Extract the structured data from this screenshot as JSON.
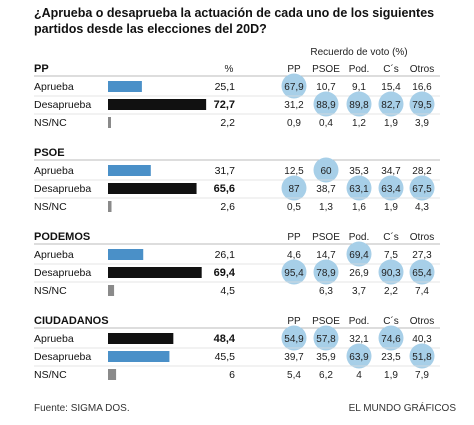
{
  "title_lines": [
    "¿Aprueba o desaprueba la actuación de cada uno de los siguientes",
    "partidos desde las elecciones del 20D?"
  ],
  "recuerdo_header": "Recuerdo de voto (%)",
  "source": "Fuente: SIGMA DOS.",
  "credit": "EL MUNDO GRÁFICOS",
  "colors": {
    "bar_black": "#111111",
    "bar_blue": "#4a90c8",
    "bar_grey": "#8a8a8a",
    "bubble": "#a7cfe8",
    "rule": "#bbbbbb"
  },
  "chart_data": {
    "type": "table",
    "columns": [
      "PP",
      "PSOE",
      "Pod.",
      "C´s",
      "Otros"
    ],
    "sections": [
      {
        "party": "PP",
        "header_cols": [
          "%",
          "PP",
          "PSOE",
          "Pod.",
          "C´s",
          "Otros"
        ],
        "rows": [
          {
            "label": "Aprueba",
            "total": "25,1",
            "value": 25.1,
            "bar": "blue",
            "bold": false,
            "cells": [
              "67,9",
              "10,7",
              "9,1",
              "15,4",
              "16,6"
            ],
            "highlight": [
              true,
              false,
              false,
              false,
              false
            ]
          },
          {
            "label": "Desaprueba",
            "total": "72,7",
            "value": 72.7,
            "bar": "black",
            "bold": true,
            "cells": [
              "31,2",
              "88,9",
              "89,8",
              "82,7",
              "79,5"
            ],
            "highlight": [
              false,
              true,
              true,
              true,
              true
            ]
          },
          {
            "label": "NS/NC",
            "total": "2,2",
            "value": 2.2,
            "bar": "grey",
            "bold": false,
            "cells": [
              "0,9",
              "0,4",
              "1,2",
              "1,9",
              "3,9"
            ],
            "highlight": [
              false,
              false,
              false,
              false,
              false
            ]
          }
        ]
      },
      {
        "party": "PSOE",
        "header_cols": [],
        "rows": [
          {
            "label": "Aprueba",
            "total": "31,7",
            "value": 31.7,
            "bar": "blue",
            "bold": false,
            "cells": [
              "12,5",
              "60",
              "35,3",
              "34,7",
              "28,2"
            ],
            "highlight": [
              false,
              true,
              false,
              false,
              false
            ]
          },
          {
            "label": "Desaprueba",
            "total": "65,6",
            "value": 65.6,
            "bar": "black",
            "bold": true,
            "cells": [
              "87",
              "38,7",
              "63,1",
              "63,4",
              "67,5"
            ],
            "highlight": [
              true,
              false,
              true,
              true,
              true
            ]
          },
          {
            "label": "NS/NC",
            "total": "2,6",
            "value": 2.6,
            "bar": "grey",
            "bold": false,
            "cells": [
              "0,5",
              "1,3",
              "1,6",
              "1,9",
              "4,3"
            ],
            "highlight": [
              false,
              false,
              false,
              false,
              false
            ]
          }
        ]
      },
      {
        "party": "PODEMOS",
        "header_cols": [
          "PP",
          "PSOE",
          "Pod.",
          "C´s",
          "Otros"
        ],
        "rows": [
          {
            "label": "Aprueba",
            "total": "26,1",
            "value": 26.1,
            "bar": "blue",
            "bold": false,
            "cells": [
              "4,6",
              "14,7",
              "69,4",
              "7,5",
              "27,3"
            ],
            "highlight": [
              false,
              false,
              true,
              false,
              false
            ]
          },
          {
            "label": "Desaprueba",
            "total": "69,4",
            "value": 69.4,
            "bar": "black",
            "bold": true,
            "cells": [
              "95,4",
              "78,9",
              "26,9",
              "90,3",
              "65,4"
            ],
            "highlight": [
              true,
              true,
              false,
              true,
              true
            ]
          },
          {
            "label": "NS/NC",
            "total": "4,5",
            "value": 4.5,
            "bar": "grey",
            "bold": false,
            "cells": [
              "",
              "6,3",
              "3,7",
              "2,2",
              "7,4"
            ],
            "highlight": [
              false,
              false,
              false,
              false,
              false
            ]
          }
        ]
      },
      {
        "party": "CIUDADANOS",
        "header_cols": [
          "PP",
          "PSOE",
          "Pod.",
          "C´s",
          "Otros"
        ],
        "rows": [
          {
            "label": "Aprueba",
            "total": "48,4",
            "value": 48.4,
            "bar": "black",
            "bold": true,
            "cells": [
              "54,9",
              "57,8",
              "32,1",
              "74,6",
              "40,3"
            ],
            "highlight": [
              true,
              true,
              false,
              true,
              false
            ]
          },
          {
            "label": "Desaprueba",
            "total": "45,5",
            "value": 45.5,
            "bar": "blue",
            "bold": false,
            "cells": [
              "39,7",
              "35,9",
              "63,9",
              "23,5",
              "51,8"
            ],
            "highlight": [
              false,
              false,
              true,
              false,
              true
            ]
          },
          {
            "label": "NS/NC",
            "total": "6",
            "value": 6,
            "bar": "grey",
            "bold": false,
            "cells": [
              "5,4",
              "6,2",
              "4",
              "1,9",
              "7,9"
            ],
            "highlight": [
              false,
              false,
              false,
              false,
              false
            ]
          }
        ]
      }
    ]
  }
}
